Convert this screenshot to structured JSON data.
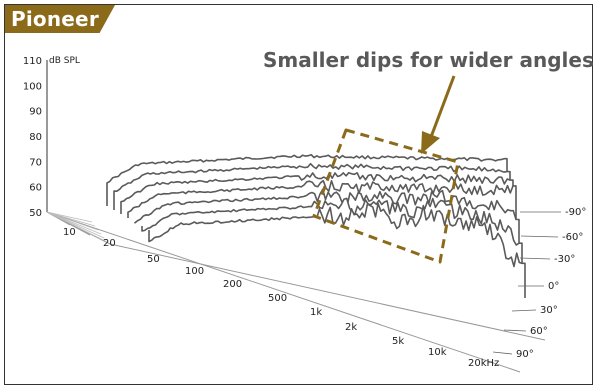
{
  "brand": "Pioneer",
  "annotation": "Smaller dips for wider angles",
  "chart_data": {
    "type": "line",
    "ylabel": "dB SPL",
    "yticks": [
      110,
      100,
      90,
      80,
      70,
      60,
      50
    ],
    "ylim": [
      50,
      110
    ],
    "xticks": [
      "10",
      "20",
      "50",
      "100",
      "200",
      "500",
      "1k",
      "2k",
      "5k",
      "10k",
      "20kHz"
    ],
    "series": [
      {
        "name": "-90°"
      },
      {
        "name": "-60°"
      },
      {
        "name": "-30°"
      },
      {
        "name": "0°"
      },
      {
        "name": "30°"
      },
      {
        "name": "60°"
      },
      {
        "name": "90°"
      }
    ],
    "colors": {
      "brand": "#8b6a1a",
      "annotation": "#8b6a1a",
      "curves": "#555555"
    }
  }
}
